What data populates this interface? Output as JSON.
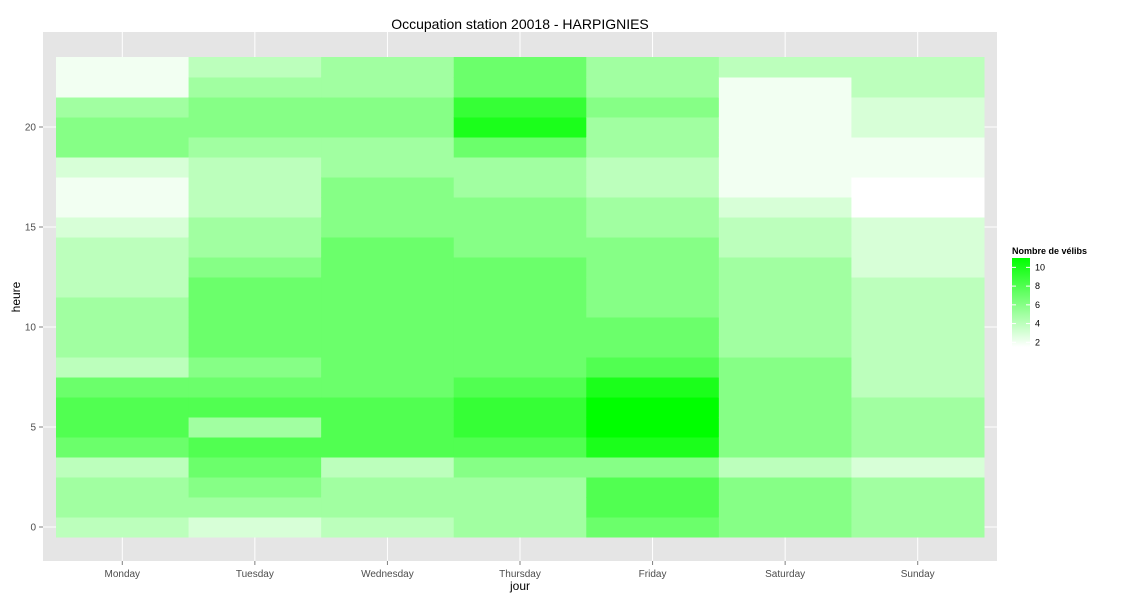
{
  "chart_data": {
    "type": "heatmap",
    "title": "Occupation station 20018 - HARPIGNIES",
    "xlabel": "jour",
    "ylabel": "heure",
    "x_categories": [
      "Monday",
      "Tuesday",
      "Wednesday",
      "Thursday",
      "Friday",
      "Saturday",
      "Sunday"
    ],
    "y_hours": [
      0,
      1,
      2,
      3,
      4,
      5,
      6,
      7,
      8,
      9,
      10,
      11,
      12,
      13,
      14,
      15,
      16,
      17,
      18,
      19,
      20,
      21,
      22,
      23
    ],
    "y_ticks": [
      0,
      5,
      10,
      15,
      20
    ],
    "ylim": [
      -0.5,
      23.5
    ],
    "grid": true,
    "colors": {
      "low": "#ffffff",
      "high": "#00ff00",
      "panel": "#e5e5e5",
      "grid": "#ffffff"
    },
    "legend": {
      "title": "Nombre de vélibs",
      "position": "right",
      "range": [
        1.5,
        11
      ],
      "breaks": [
        2,
        4,
        6,
        8,
        10
      ]
    },
    "values": {
      "Monday": [
        4,
        5,
        5,
        4,
        7,
        8,
        8,
        7,
        4,
        5,
        5,
        5,
        4,
        4,
        4,
        3,
        2,
        2,
        3,
        6,
        6,
        5,
        2,
        2
      ],
      "Tuesday": [
        3,
        5,
        6,
        7,
        8,
        5,
        8,
        7,
        6,
        7,
        7,
        7,
        7,
        6,
        5,
        5,
        4,
        4,
        4,
        5,
        6,
        6,
        5,
        4
      ],
      "Wednesday": [
        4,
        5,
        5,
        4,
        8,
        8,
        8,
        7,
        7,
        7,
        7,
        7,
        7,
        7,
        7,
        6,
        6,
        6,
        5,
        5,
        6,
        6,
        5,
        5
      ],
      "Thursday": [
        5,
        5,
        5,
        6,
        8,
        9,
        9,
        8,
        7,
        7,
        7,
        7,
        7,
        7,
        6,
        6,
        6,
        5,
        5,
        7,
        10,
        9,
        7,
        7
      ],
      "Friday": [
        7,
        8,
        8,
        6,
        10,
        11,
        11,
        10,
        8,
        7,
        7,
        6,
        6,
        6,
        6,
        5,
        5,
        4,
        4,
        5,
        5,
        6,
        5,
        5
      ],
      "Saturday": [
        6,
        6,
        6,
        4,
        6,
        6,
        6,
        6,
        6,
        5,
        5,
        5,
        5,
        5,
        4,
        4,
        3,
        2,
        2,
        2,
        2,
        2,
        2,
        4
      ],
      "Sunday": [
        5,
        5,
        5,
        3,
        5,
        5,
        5,
        4,
        4,
        4,
        4,
        4,
        4,
        3,
        3,
        3,
        1.5,
        1.5,
        2,
        2,
        3,
        3,
        4,
        4
      ]
    }
  }
}
